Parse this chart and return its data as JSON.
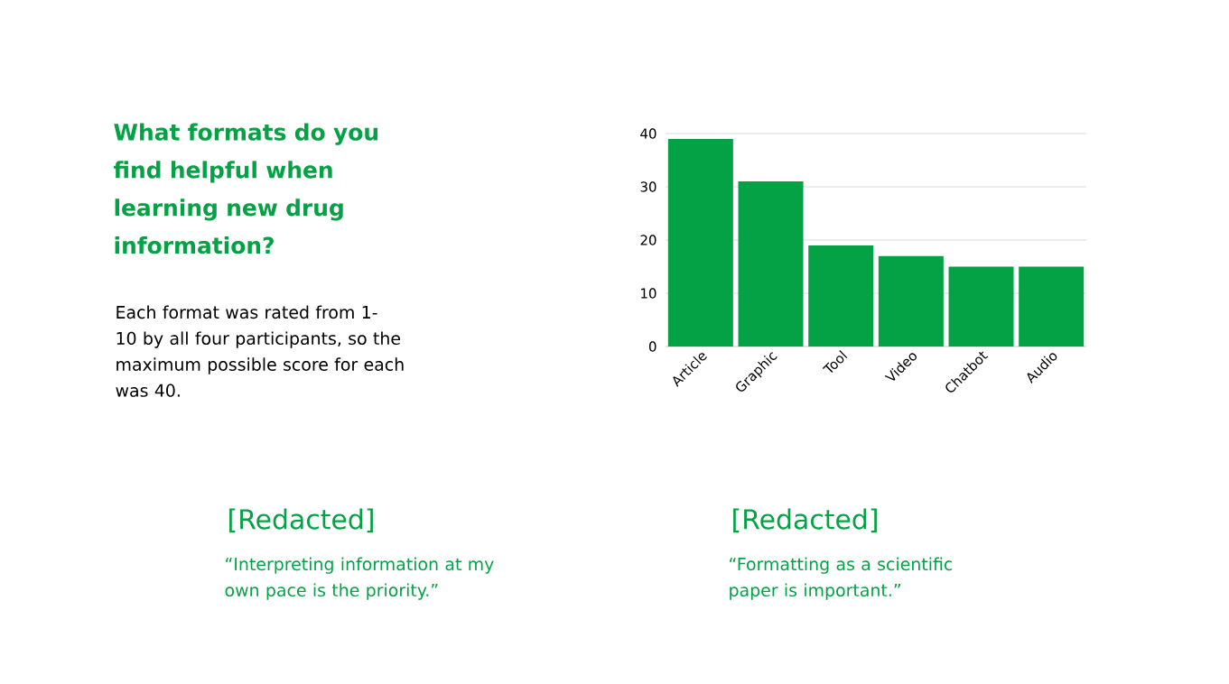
{
  "chart_data": {
    "type": "bar",
    "title": "What formats do you find helpful when learning new drug information?",
    "categories": [
      "Article",
      "Graphic",
      "Tool",
      "Video",
      "Chatbot",
      "Audio"
    ],
    "values": [
      39,
      31,
      19,
      17,
      15,
      15
    ],
    "color": "#05a245",
    "ylim": [
      0,
      40
    ],
    "yticks": [
      0,
      10,
      20,
      30,
      40
    ],
    "grid": "y",
    "annotations": [
      "Each format was rated from 1-10 by all four participants, so the maximum possible score for each was 40.",
      "[Redacted]",
      "“Interpreting information at my own pace is the priority.”",
      "[Redacted]",
      "“Formatting as a scientific paper is important.”"
    ]
  }
}
